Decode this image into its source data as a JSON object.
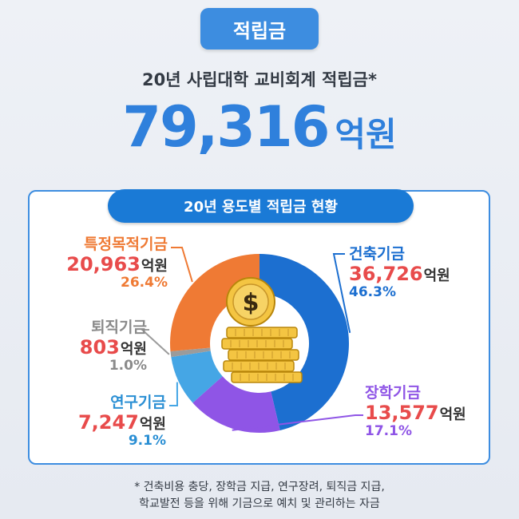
{
  "badge": "적립금",
  "subtitle": "20년 사립대학 교비회계 적립금*",
  "total": {
    "value": "79,316",
    "unit": "억원"
  },
  "panel_title": "20년 용도별 적립금 현황",
  "colors": {
    "accent": "#3d8de0",
    "amount_red": "#e84b4b"
  },
  "chart_data": {
    "type": "pie",
    "title": "20년 용도별 적립금 현황",
    "unit": "억원",
    "slices": [
      {
        "name": "건축기금",
        "value": 36726,
        "value_text": "36,726",
        "percent": "46.3%",
        "color": "#1c6fd0",
        "text_color": "#1c6fd0"
      },
      {
        "name": "장학기금",
        "value": 13577,
        "value_text": "13,577",
        "percent": "17.1%",
        "color": "#8f55e6",
        "text_color": "#8f55e6"
      },
      {
        "name": "연구기금",
        "value": 7247,
        "value_text": "7,247",
        "percent": "9.1%",
        "color": "#45a6e5",
        "text_color": "#2a8fd4"
      },
      {
        "name": "퇴직기금",
        "value": 803,
        "value_text": "803",
        "percent": "1.0%",
        "color": "#9b9b9b",
        "text_color": "#8a8a8a"
      },
      {
        "name": "특정목적기금",
        "value": 20963,
        "value_text": "20,963",
        "percent": "26.4%",
        "color": "#ef7a34",
        "text_color": "#ef7a34"
      }
    ]
  },
  "footnote": {
    "line1": "* 건축비용 충당, 장학금 지급, 연구장려, 퇴직금 지급,",
    "line2": "학교발전 등을 위해  기금으로 예치 및 관리하는 자금"
  },
  "center_icon": "coin-stack-icon",
  "coin_symbol": "$"
}
